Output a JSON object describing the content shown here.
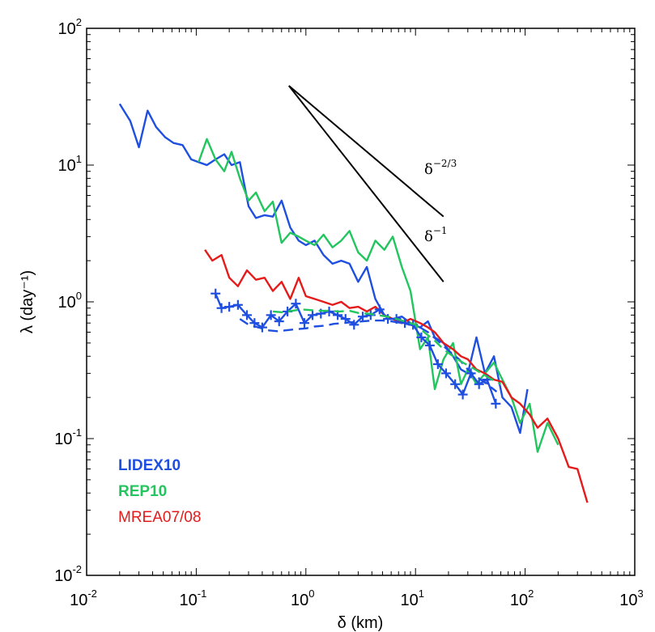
{
  "chart_data": {
    "type": "line",
    "title": "",
    "xlabel": "δ (km)",
    "ylabel": "λ (day⁻¹)",
    "xscale": "log",
    "yscale": "log",
    "xlim": [
      0.01,
      1000
    ],
    "ylim": [
      0.01,
      100
    ],
    "x_ticks": [
      {
        "value": 0.01,
        "base": "10",
        "exp": "-2"
      },
      {
        "value": 0.1,
        "base": "10",
        "exp": "-1"
      },
      {
        "value": 1,
        "base": "10",
        "exp": "0"
      },
      {
        "value": 10,
        "base": "10",
        "exp": "1"
      },
      {
        "value": 100,
        "base": "10",
        "exp": "2"
      },
      {
        "value": 1000,
        "base": "10",
        "exp": "3"
      }
    ],
    "y_ticks": [
      {
        "value": 0.01,
        "base": "10",
        "exp": "-2"
      },
      {
        "value": 0.1,
        "base": "10",
        "exp": "-1"
      },
      {
        "value": 1,
        "base": "10",
        "exp": "0"
      },
      {
        "value": 10,
        "base": "10",
        "exp": "1"
      },
      {
        "value": 100,
        "base": "10",
        "exp": "2"
      }
    ],
    "grid": false,
    "legend": {
      "position": "bottom-left",
      "entries": [
        {
          "label": "LIDEX10",
          "color": "#1f4fe0",
          "bold": true
        },
        {
          "label": "REP10",
          "color": "#22c55e",
          "bold": true
        },
        {
          "label": "MREA07/08",
          "color": "#e51b1b",
          "bold": false
        }
      ]
    },
    "annotations": [
      {
        "base": "δ",
        "exp": "−2/3"
      },
      {
        "base": "δ",
        "exp": "−1"
      }
    ],
    "reference_lines": [
      {
        "name": "slope -2/3",
        "x": [
          0.7,
          18
        ],
        "y": [
          38,
          4.2
        ]
      },
      {
        "name": "slope -1",
        "x": [
          0.7,
          18
        ],
        "y": [
          38,
          1.4
        ]
      }
    ],
    "series": [
      {
        "id": "lidex-solid",
        "color": "#1f4fe0",
        "style": "solid",
        "marker": "none",
        "x": [
          0.02,
          0.025,
          0.03,
          0.036,
          0.043,
          0.052,
          0.062,
          0.075,
          0.09,
          0.105,
          0.125,
          0.15,
          0.18,
          0.21,
          0.25,
          0.3,
          0.35,
          0.42,
          0.5,
          0.6,
          0.72,
          0.86,
          1.0,
          1.2,
          1.45,
          1.75,
          2.1,
          2.5,
          3.0,
          3.6,
          4.3,
          5.2,
          6.2,
          7.5,
          9.0,
          11,
          13,
          15,
          18,
          22,
          26,
          30,
          36,
          43,
          52,
          62,
          75,
          90,
          105
        ],
        "y": [
          28,
          21,
          13.5,
          25,
          19,
          16,
          14.5,
          14,
          11,
          10.5,
          10,
          11,
          12,
          10,
          10.5,
          5,
          4.1,
          4.3,
          4.2,
          5.5,
          3.5,
          2.8,
          2.6,
          2.8,
          2.2,
          1.9,
          2.0,
          1.9,
          1.4,
          1.8,
          1.05,
          0.8,
          0.75,
          0.78,
          0.7,
          0.65,
          0.72,
          0.55,
          0.5,
          0.4,
          0.32,
          0.3,
          0.55,
          0.3,
          0.4,
          0.2,
          0.17,
          0.11,
          0.23
        ]
      },
      {
        "id": "rep-solid",
        "color": "#22c55e",
        "style": "solid",
        "marker": "none",
        "x": [
          0.105,
          0.125,
          0.15,
          0.18,
          0.21,
          0.25,
          0.3,
          0.35,
          0.42,
          0.5,
          0.6,
          0.72,
          0.86,
          1.0,
          1.2,
          1.45,
          1.75,
          2.1,
          2.5,
          3.0,
          3.6,
          4.3,
          5.2,
          6.2,
          7.5,
          9.0,
          11,
          13,
          15,
          18,
          22,
          26,
          30,
          36,
          43,
          52,
          62,
          75,
          90,
          110,
          130,
          160,
          200
        ],
        "y": [
          10.5,
          15.5,
          11,
          9,
          12.5,
          8,
          5.5,
          6.3,
          4.6,
          5.4,
          2.7,
          3.2,
          3.0,
          2.8,
          2.6,
          3.1,
          2.5,
          2.8,
          3.3,
          2.3,
          2.0,
          2.8,
          2.4,
          3.0,
          1.8,
          1.2,
          0.45,
          0.55,
          0.23,
          0.38,
          0.5,
          0.25,
          0.32,
          0.25,
          0.3,
          0.36,
          0.27,
          0.2,
          0.13,
          0.18,
          0.08,
          0.13,
          0.09
        ]
      },
      {
        "id": "mrea-solid",
        "color": "#e51b1b",
        "style": "solid",
        "marker": "none",
        "x": [
          0.12,
          0.14,
          0.17,
          0.2,
          0.24,
          0.29,
          0.35,
          0.42,
          0.5,
          0.6,
          0.72,
          0.86,
          1.0,
          1.2,
          1.45,
          1.75,
          2.1,
          2.5,
          3.0,
          3.6,
          4.3,
          5.2,
          6.2,
          7.5,
          9.0,
          11,
          13,
          15,
          18,
          22,
          26,
          30,
          36,
          43,
          52,
          62,
          75,
          90,
          110,
          130,
          160,
          200,
          250,
          300,
          370
        ],
        "y": [
          2.4,
          2.0,
          2.2,
          1.5,
          1.3,
          1.7,
          1.45,
          1.5,
          1.2,
          1.4,
          1.05,
          1.5,
          1.1,
          1.05,
          1.0,
          0.95,
          1.0,
          0.9,
          0.92,
          0.85,
          0.92,
          0.8,
          0.75,
          0.7,
          0.75,
          0.7,
          0.65,
          0.6,
          0.5,
          0.45,
          0.4,
          0.38,
          0.32,
          0.3,
          0.27,
          0.26,
          0.2,
          0.18,
          0.15,
          0.12,
          0.14,
          0.1,
          0.062,
          0.06,
          0.034
        ]
      },
      {
        "id": "lidex-crosses",
        "color": "#1f4fe0",
        "style": "solid",
        "marker": "plus",
        "x": [
          0.15,
          0.17,
          0.2,
          0.24,
          0.29,
          0.34,
          0.4,
          0.48,
          0.57,
          0.68,
          0.81,
          0.97,
          1.15,
          1.37,
          1.63,
          1.95,
          2.3,
          2.75,
          3.3,
          3.9,
          4.7,
          5.6,
          6.7,
          8.0,
          9.5,
          11.3,
          13.5,
          16,
          19,
          23,
          27,
          32,
          38,
          45,
          54
        ],
        "y": [
          1.15,
          0.9,
          0.92,
          0.95,
          0.8,
          0.7,
          0.65,
          0.8,
          0.72,
          0.85,
          0.97,
          0.7,
          0.8,
          0.82,
          0.85,
          0.8,
          0.75,
          0.68,
          0.78,
          0.8,
          0.88,
          0.75,
          0.75,
          0.7,
          0.68,
          0.55,
          0.48,
          0.35,
          0.3,
          0.25,
          0.21,
          0.3,
          0.25,
          0.27,
          0.18
        ]
      },
      {
        "id": "lidex-dashed",
        "color": "#1f4fe0",
        "style": "dashed",
        "marker": "none",
        "x": [
          0.25,
          0.3,
          0.37,
          0.45,
          0.55,
          0.67,
          0.8,
          1.0,
          1.2,
          1.5,
          1.8,
          2.2,
          2.7,
          3.3,
          4.0,
          5.0,
          6.0,
          7.5,
          9.0,
          11,
          13,
          16,
          20,
          25,
          30,
          37,
          45,
          55
        ],
        "y": [
          0.75,
          0.68,
          0.65,
          0.62,
          0.61,
          0.62,
          0.63,
          0.64,
          0.66,
          0.67,
          0.69,
          0.7,
          0.71,
          0.72,
          0.73,
          0.73,
          0.72,
          0.7,
          0.68,
          0.65,
          0.6,
          0.52,
          0.44,
          0.38,
          0.32,
          0.28,
          0.25,
          0.22
        ]
      },
      {
        "id": "rep-dashed",
        "color": "#22c55e",
        "style": "dashed",
        "marker": "none",
        "x": [
          0.5,
          0.6,
          0.75,
          0.9,
          1.1,
          1.35,
          1.65,
          2.0,
          2.5,
          3.0,
          3.7,
          4.5,
          5.5,
          6.7,
          8.0,
          10,
          12,
          15,
          18,
          22,
          27,
          33,
          40,
          50,
          60
        ],
        "y": [
          0.85,
          0.84,
          0.86,
          0.88,
          0.87,
          0.86,
          0.86,
          0.85,
          0.86,
          0.83,
          0.82,
          0.8,
          0.78,
          0.75,
          0.72,
          0.68,
          0.6,
          0.52,
          0.45,
          0.4,
          0.36,
          0.33,
          0.3,
          0.27,
          0.25
        ]
      }
    ]
  }
}
